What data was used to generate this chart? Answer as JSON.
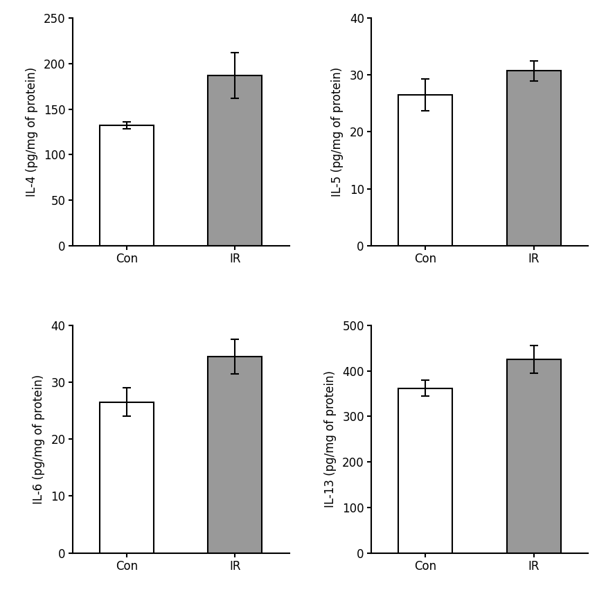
{
  "panels": [
    {
      "ylabel": "IL-4 (pg/mg of protein)",
      "categories": [
        "Con",
        "IR"
      ],
      "values": [
        132,
        187
      ],
      "errors": [
        4,
        25
      ],
      "ylim": [
        0,
        250
      ],
      "yticks": [
        0,
        50,
        100,
        150,
        200,
        250
      ],
      "bar_colors": [
        "#ffffff",
        "#999999"
      ],
      "bar_edgecolor": "#000000"
    },
    {
      "ylabel": "IL-5 (pg/mg of protein)",
      "categories": [
        "Con",
        "IR"
      ],
      "values": [
        26.5,
        30.7
      ],
      "errors": [
        2.8,
        1.8
      ],
      "ylim": [
        0,
        40
      ],
      "yticks": [
        0,
        10,
        20,
        30,
        40
      ],
      "bar_colors": [
        "#ffffff",
        "#999999"
      ],
      "bar_edgecolor": "#000000"
    },
    {
      "ylabel": "IL-6 (pg/mg of protein)",
      "categories": [
        "Con",
        "IR"
      ],
      "values": [
        26.5,
        34.5
      ],
      "errors": [
        2.5,
        3.0
      ],
      "ylim": [
        0,
        40
      ],
      "yticks": [
        0,
        10,
        20,
        30,
        40
      ],
      "bar_colors": [
        "#ffffff",
        "#999999"
      ],
      "bar_edgecolor": "#000000"
    },
    {
      "ylabel": "IL-13 (pg/mg of protein)",
      "categories": [
        "Con",
        "IR"
      ],
      "values": [
        362,
        425
      ],
      "errors": [
        18,
        30
      ],
      "ylim": [
        0,
        500
      ],
      "yticks": [
        0,
        100,
        200,
        300,
        400,
        500
      ],
      "bar_colors": [
        "#ffffff",
        "#999999"
      ],
      "bar_edgecolor": "#000000"
    }
  ],
  "bar_width": 0.5,
  "capsize": 4,
  "linewidth": 1.5,
  "tick_fontsize": 12,
  "label_fontsize": 12,
  "background_color": "#ffffff",
  "error_linewidth": 1.5,
  "error_capthick": 1.5,
  "figsize": [
    8.75,
    8.68
  ],
  "dpi": 100
}
